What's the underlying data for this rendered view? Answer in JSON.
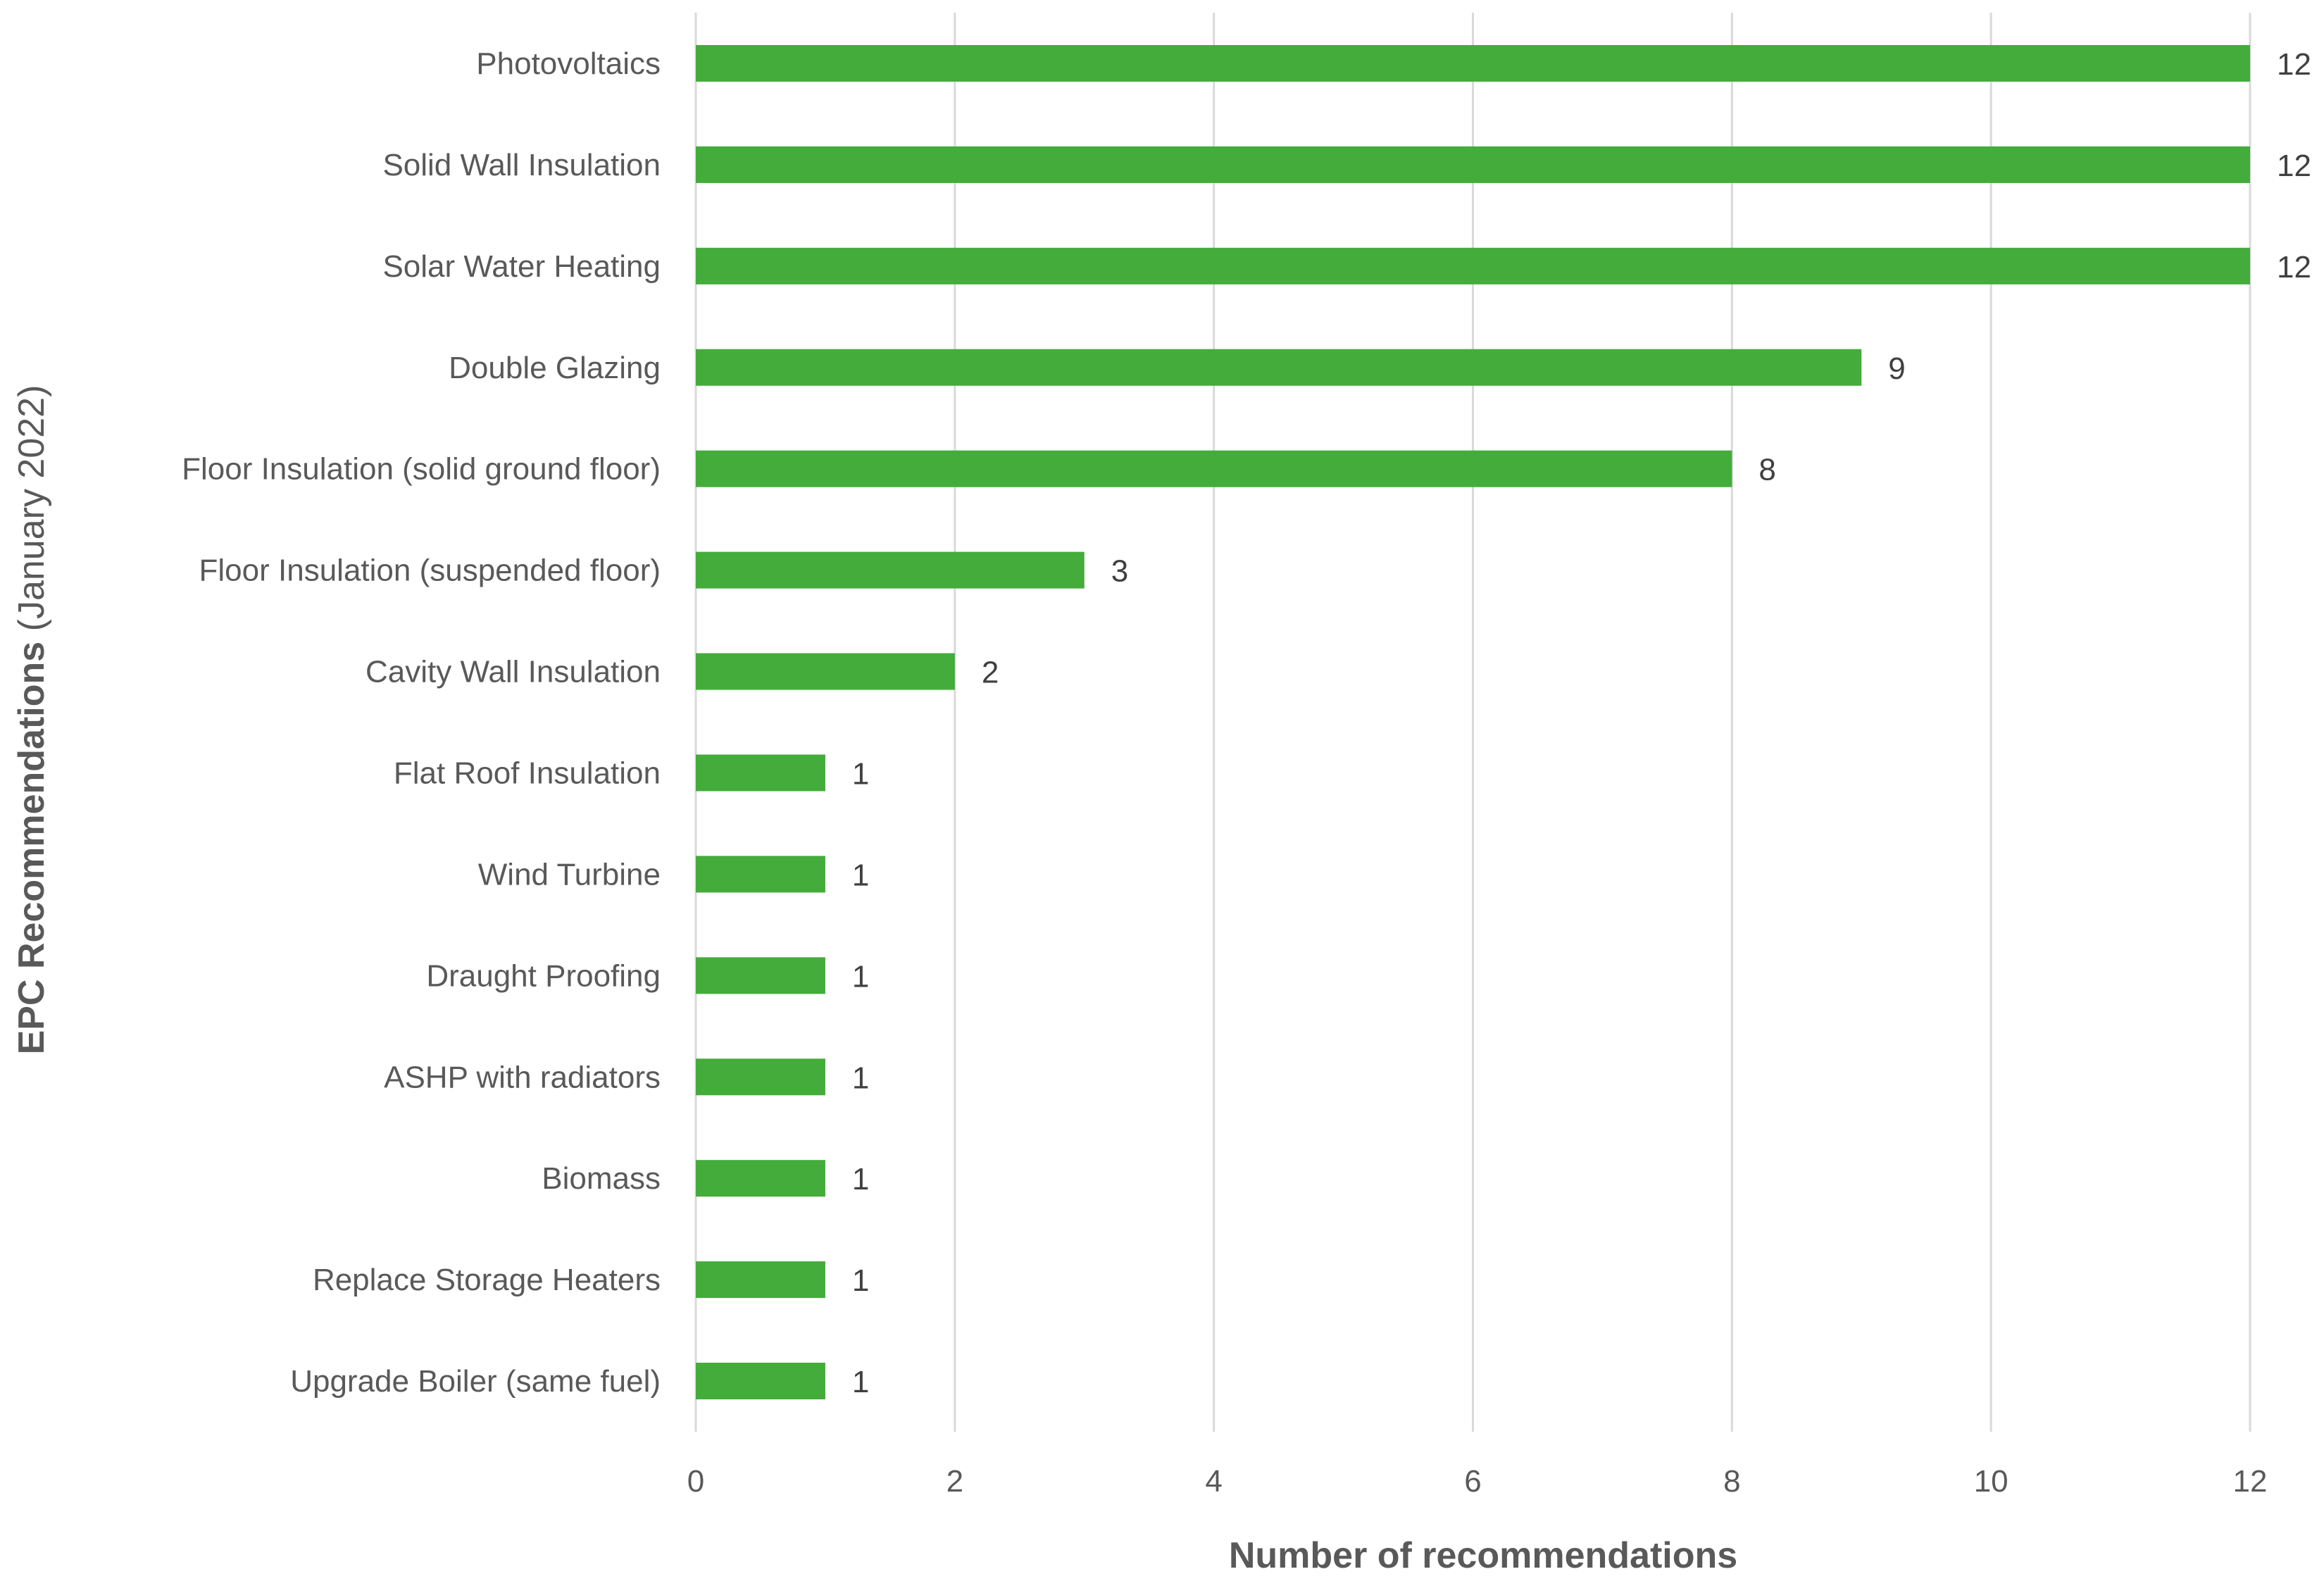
{
  "chart_data": {
    "type": "bar",
    "orientation": "horizontal",
    "categories": [
      "Photovoltaics",
      "Solid Wall Insulation",
      "Solar Water Heating",
      "Double Glazing",
      "Floor Insulation (solid ground floor)",
      "Floor Insulation (suspended floor)",
      "Cavity Wall Insulation",
      "Flat Roof Insulation",
      "Wind Turbine",
      "Draught Proofing",
      "ASHP with radiators",
      "Biomass",
      "Replace Storage Heaters",
      "Upgrade Boiler (same fuel)"
    ],
    "values": [
      12,
      12,
      12,
      9,
      8,
      3,
      2,
      1,
      1,
      1,
      1,
      1,
      1,
      1
    ],
    "data_labels": [
      "12",
      "12",
      "12",
      "9",
      "8",
      "3",
      "2",
      "1",
      "1",
      "1",
      "1",
      "1",
      "1",
      "1"
    ],
    "xlabel": "Number of recommendations",
    "ylabel_bold": "EPC Recommendations",
    "ylabel_normal": " (January 2022)",
    "xlim": [
      0,
      12
    ],
    "xticks": [
      "0",
      "2",
      "4",
      "6",
      "8",
      "10",
      "12"
    ],
    "grid": "vertical",
    "legend": "none",
    "bar_color": "#43ac3b"
  }
}
